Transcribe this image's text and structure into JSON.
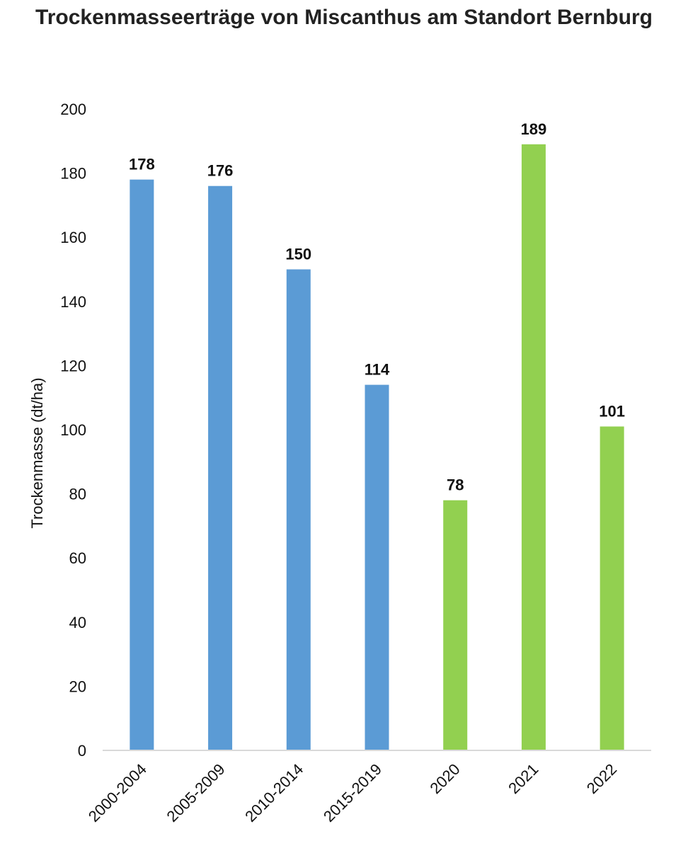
{
  "chart_data": {
    "type": "bar",
    "title": "Trockenmasseerträge von Miscanthus am Standort Bernburg",
    "ylabel": "Trockenmasse (dt/ha)",
    "xlabel": "",
    "ylim": [
      0,
      200
    ],
    "yticks": [
      0,
      20,
      40,
      60,
      80,
      100,
      120,
      140,
      160,
      180,
      200
    ],
    "grid": false,
    "categories": [
      "2000-2004",
      "2005-2009",
      "2010-2014",
      "2015-2019",
      "2020",
      "2021",
      "2022"
    ],
    "values": [
      178,
      176,
      150,
      114,
      78,
      189,
      101
    ],
    "value_labels": [
      "178",
      "176",
      "150",
      "114",
      "78",
      "189",
      "101"
    ],
    "bar_colors": [
      "#5b9bd5",
      "#5b9bd5",
      "#5b9bd5",
      "#5b9bd5",
      "#92d050",
      "#92d050",
      "#92d050"
    ],
    "axis_color": "#d9d9d9"
  }
}
